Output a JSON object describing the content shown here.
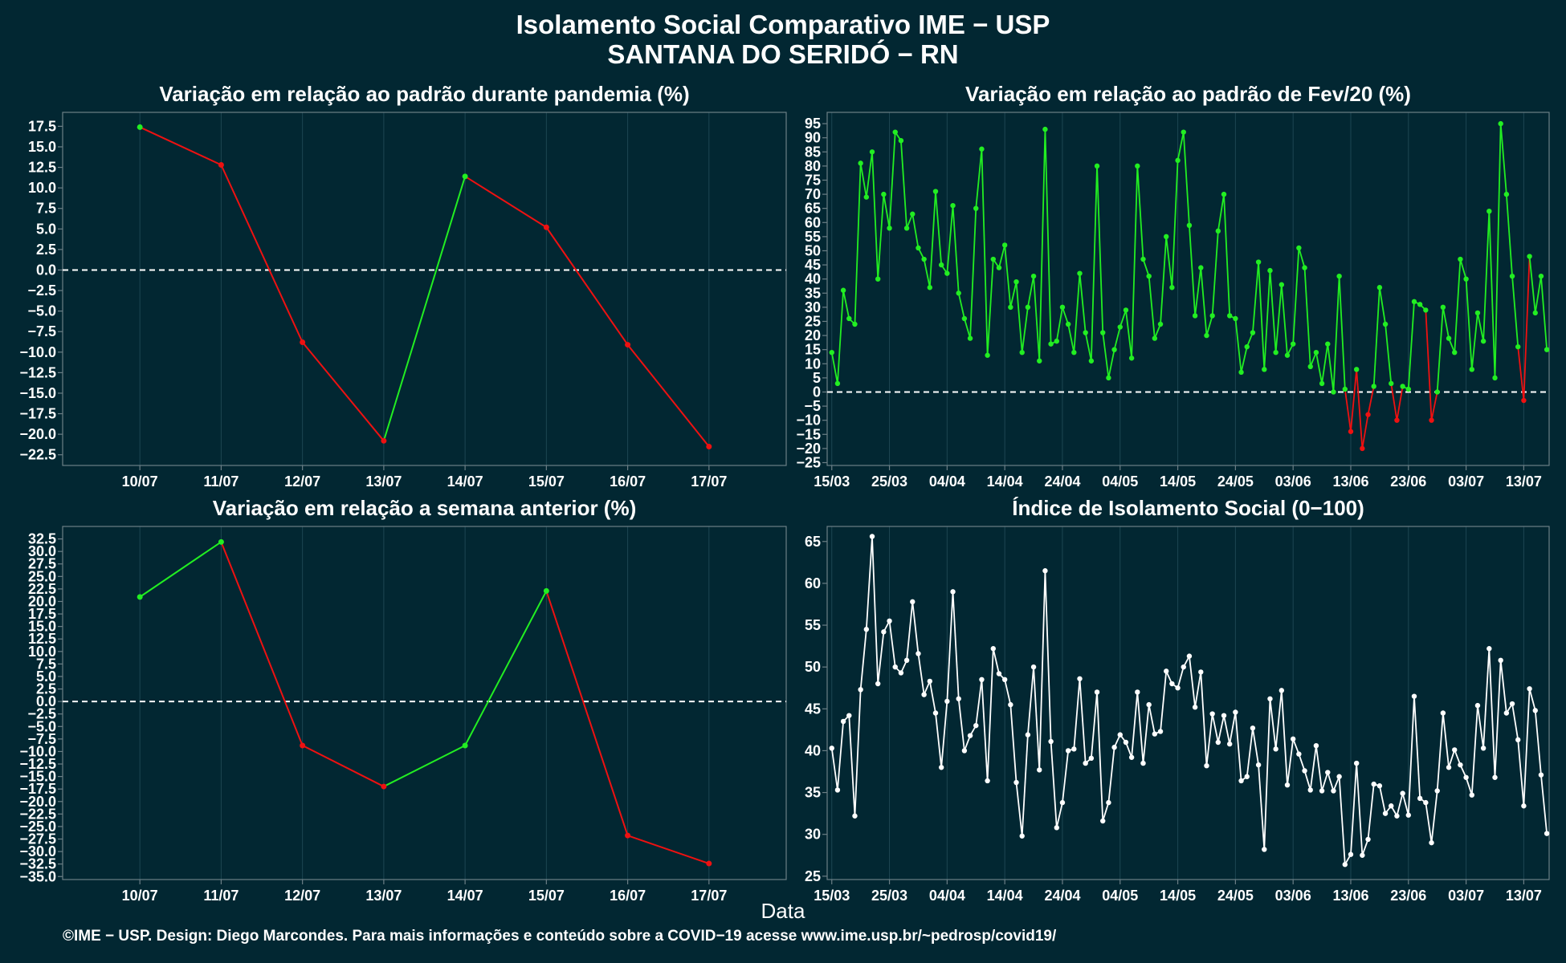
{
  "title": {
    "line1": "Isolamento Social Comparativo IME − USP",
    "line2": "SANTANA DO SERIDÓ − RN"
  },
  "xlabel": "Data",
  "footer": "©IME − USP. Design: Diego Marcondes. Para mais informações e conteúdo sobre a COVID−19 acesse www.ime.usp.br/~pedrosp/covid19/",
  "colors": {
    "background": "#022732",
    "up": "#22ee22",
    "down": "#ee1111",
    "index": "#ffffff",
    "axis": "#6c7f86"
  },
  "chart_data": [
    {
      "type": "line",
      "title": "Variação em relação ao padrão durante pandemia (%)",
      "categories": [
        "10/07",
        "11/07",
        "12/07",
        "13/07",
        "14/07",
        "15/07",
        "16/07",
        "17/07"
      ],
      "values": [
        17.4,
        12.8,
        -8.8,
        -20.8,
        11.4,
        5.2,
        -9.1,
        -21.5
      ],
      "ylim": [
        -23.8,
        19.2
      ],
      "yticks": [
        17.5,
        15.0,
        12.5,
        10.0,
        7.5,
        5.0,
        2.5,
        0.0,
        -2.5,
        -5.0,
        -7.5,
        -10.0,
        -12.5,
        -15.0,
        -17.5,
        -20.0,
        -22.5
      ],
      "ytick_labels": [
        "17.5",
        "15.0",
        "12.5",
        "10.0",
        "7.5",
        "5.0",
        "2.5",
        "0.0",
        "−2.5",
        "−5.0",
        "−7.5",
        "−10.0",
        "−12.5",
        "−15.0",
        "−17.5",
        "−20.0",
        "−22.5"
      ],
      "reference_line": 0,
      "colored_by_change": true
    },
    {
      "type": "line",
      "title": "Variação em relação ao padrão de Fev/20 (%)",
      "start_date": "2020-03-15",
      "values": [
        14,
        3,
        36,
        26,
        24,
        81,
        69,
        85,
        40,
        70,
        58,
        92,
        89,
        58,
        63,
        51,
        47,
        37,
        71,
        45,
        42,
        66,
        35,
        26,
        19,
        65,
        86,
        13,
        47,
        44,
        52,
        30,
        39,
        14,
        30,
        41,
        11,
        93,
        17,
        18,
        30,
        24,
        14,
        42,
        21,
        11,
        80,
        21,
        5,
        15,
        23,
        29,
        12,
        80,
        47,
        41,
        19,
        24,
        55,
        37,
        82,
        92,
        59,
        27,
        44,
        20,
        27,
        57,
        70,
        27,
        26,
        7,
        16,
        21,
        46,
        8,
        43,
        14,
        38,
        13,
        17,
        51,
        44,
        9,
        14,
        3,
        17,
        0,
        41,
        1,
        -14,
        8,
        -20,
        -8,
        2,
        37,
        24,
        3,
        -10,
        2,
        1,
        32,
        31,
        29,
        -10,
        0,
        30,
        19,
        14,
        47,
        40,
        8,
        28,
        18,
        64,
        5,
        95,
        70,
        41,
        16,
        -3,
        48,
        28,
        41,
        15
      ],
      "ylim": [
        -26,
        99
      ],
      "yticks": [
        95,
        90,
        85,
        80,
        75,
        70,
        65,
        60,
        55,
        50,
        45,
        40,
        35,
        30,
        25,
        20,
        15,
        10,
        5,
        0,
        -5,
        -10,
        -15,
        -20,
        -25
      ],
      "ytick_labels": [
        "95",
        "90",
        "85",
        "80",
        "75",
        "70",
        "65",
        "60",
        "55",
        "50",
        "45",
        "40",
        "35",
        "30",
        "25",
        "20",
        "15",
        "10",
        "5",
        "0",
        "−5",
        "−10",
        "−15",
        "−20",
        "−25"
      ],
      "xtick_labels": [
        "15/03",
        "25/03",
        "04/04",
        "14/04",
        "24/04",
        "04/05",
        "14/05",
        "24/05",
        "03/06",
        "13/06",
        "23/06",
        "03/07",
        "13/07"
      ],
      "xtick_day_offsets": [
        0,
        10,
        20,
        30,
        40,
        50,
        60,
        70,
        80,
        90,
        100,
        110,
        120
      ],
      "reference_line": 0,
      "colored_by_sign": true
    },
    {
      "type": "line",
      "title": "Variação em relação a semana anterior (%)",
      "categories": [
        "10/07",
        "11/07",
        "12/07",
        "13/07",
        "14/07",
        "15/07",
        "16/07",
        "17/07"
      ],
      "values": [
        20.9,
        31.9,
        -8.8,
        -17.0,
        -8.8,
        22.1,
        -26.8,
        -32.4
      ],
      "ylim": [
        -35.6,
        35.0
      ],
      "yticks": [
        32.5,
        30.0,
        27.5,
        25.0,
        22.5,
        20.0,
        17.5,
        15.0,
        12.5,
        10.0,
        7.5,
        5.0,
        2.5,
        0.0,
        -2.5,
        -5.0,
        -7.5,
        -10.0,
        -12.5,
        -15.0,
        -17.5,
        -20.0,
        -22.5,
        -25.0,
        -27.5,
        -30.0,
        -32.5,
        -35.0
      ],
      "ytick_labels": [
        "32.5",
        "30.0",
        "27.5",
        "25.0",
        "22.5",
        "20.0",
        "17.5",
        "15.0",
        "12.5",
        "10.0",
        "7.5",
        "5.0",
        "2.5",
        "0.0",
        "−2.5",
        "−5.0",
        "−7.5",
        "−10.0",
        "−12.5",
        "−15.0",
        "−17.5",
        "−20.0",
        "−22.5",
        "−25.0",
        "−27.5",
        "−30.0",
        "−32.5",
        "−35.0"
      ],
      "reference_line": 0,
      "colored_by_change": true
    },
    {
      "type": "line",
      "title": "Índice de Isolamento Social (0−100)",
      "start_date": "2020-03-15",
      "values": [
        40.3,
        35.3,
        43.5,
        44.2,
        32.2,
        47.3,
        54.5,
        65.6,
        48.0,
        54.2,
        55.5,
        50.0,
        49.3,
        50.8,
        57.8,
        51.6,
        46.7,
        48.3,
        44.5,
        38.0,
        45.9,
        59.0,
        46.2,
        40.0,
        41.8,
        43.0,
        48.5,
        36.4,
        52.2,
        49.2,
        48.5,
        45.5,
        36.2,
        29.8,
        41.9,
        50.0,
        37.7,
        61.5,
        41.1,
        30.8,
        33.8,
        40.0,
        40.2,
        48.6,
        38.5,
        39.1,
        47.0,
        31.6,
        33.8,
        40.4,
        41.9,
        41.0,
        39.2,
        47.0,
        38.5,
        45.5,
        42.0,
        42.3,
        49.5,
        48.0,
        47.5,
        50.0,
        51.3,
        45.2,
        49.4,
        38.2,
        44.4,
        41.0,
        44.2,
        40.8,
        44.6,
        36.4,
        36.9,
        42.7,
        38.3,
        28.2,
        46.2,
        40.2,
        47.2,
        35.9,
        41.4,
        39.6,
        37.6,
        35.3,
        40.6,
        35.2,
        37.4,
        35.2,
        36.9,
        26.4,
        27.6,
        38.5,
        27.5,
        29.4,
        36.0,
        35.8,
        32.5,
        33.4,
        32.2,
        34.9,
        32.3,
        46.5,
        34.3,
        33.8,
        29.0,
        35.2,
        44.5,
        38.0,
        40.1,
        38.3,
        36.8,
        34.7,
        45.4,
        40.3,
        52.2,
        36.8,
        50.8,
        44.5,
        45.6,
        41.3,
        33.4,
        47.4,
        44.8,
        37.1,
        30.1
      ],
      "ylim": [
        24.6,
        66.8
      ],
      "yticks": [
        65,
        60,
        55,
        50,
        45,
        40,
        35,
        30,
        25
      ],
      "ytick_labels": [
        "65",
        "60",
        "55",
        "50",
        "45",
        "40",
        "35",
        "30",
        "25"
      ],
      "xtick_labels": [
        "15/03",
        "25/03",
        "04/04",
        "14/04",
        "24/04",
        "04/05",
        "14/05",
        "24/05",
        "03/06",
        "13/06",
        "23/06",
        "03/07",
        "13/07"
      ],
      "xtick_day_offsets": [
        0,
        10,
        20,
        30,
        40,
        50,
        60,
        70,
        80,
        90,
        100,
        110,
        120
      ]
    }
  ]
}
